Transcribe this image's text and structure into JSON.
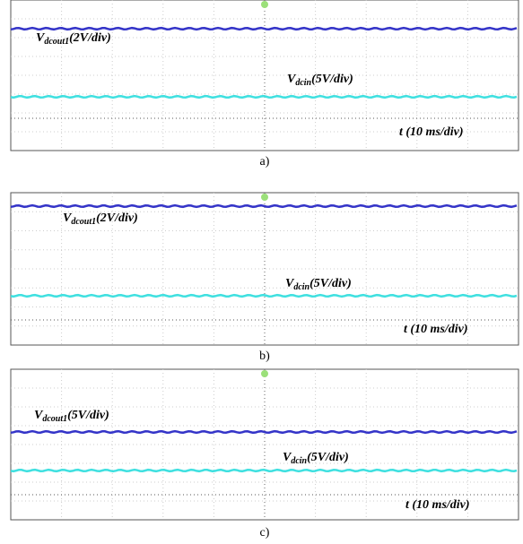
{
  "panels": [
    {
      "caption": "a)",
      "traces": [
        {
          "symbol": "V",
          "subscript": "dcout1",
          "scale": "(2V/div)"
        },
        {
          "symbol": "V",
          "subscript": "dcin",
          "scale": "(5V/div)"
        }
      ],
      "time_label": "t (10 ms/div)"
    },
    {
      "caption": "b)",
      "traces": [
        {
          "symbol": "V",
          "subscript": "dcout1",
          "scale": "(2V/div)"
        },
        {
          "symbol": "V",
          "subscript": "dcin",
          "scale": "(5V/div)"
        }
      ],
      "time_label": "t (10 ms/div)"
    },
    {
      "caption": "c)",
      "traces": [
        {
          "symbol": "V",
          "subscript": "dcout1",
          "scale": "(5V/div)"
        },
        {
          "symbol": "V",
          "subscript": "dcin",
          "scale": "(5V/div)"
        }
      ],
      "time_label": "t (10 ms/div)"
    }
  ]
}
